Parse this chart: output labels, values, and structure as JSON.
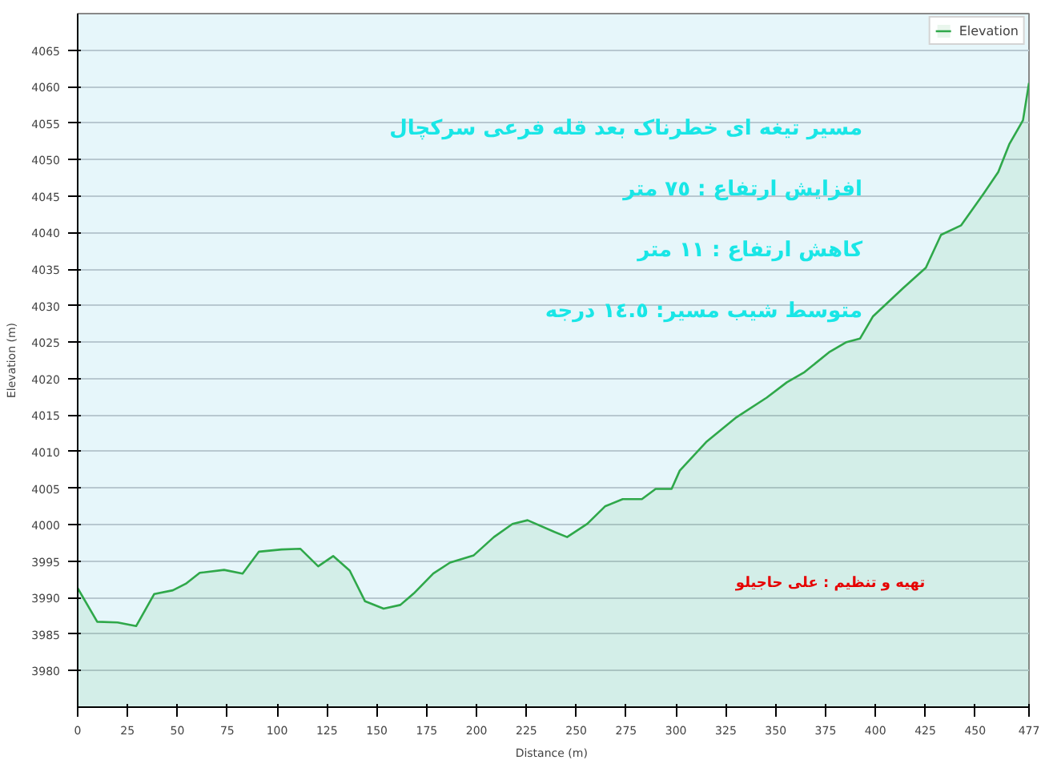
{
  "chart_data": {
    "type": "area",
    "xlabel": "Distance  (m)",
    "ylabel": "Elevation (m)",
    "x": [
      0,
      9.8,
      20,
      29.3,
      38.4,
      47.7,
      54.2,
      61.2,
      73.4,
      82.7,
      90.9,
      102.2,
      111.6,
      120.6,
      128.1,
      136.4,
      144.1,
      153.4,
      161.8,
      168.6,
      178.3,
      186.7,
      198.6,
      208.7,
      218,
      225.6,
      239.1,
      245.4,
      255.5,
      264.4,
      273.3,
      282.9,
      289.8,
      297.8,
      301.9,
      315.1,
      330.3,
      345.5,
      355.6,
      364.5,
      376.7,
      385.5,
      392.3,
      398.7,
      413.9,
      425.3,
      432.9,
      443,
      454.4,
      461.6,
      467.1,
      474,
      477
    ],
    "series": [
      {
        "name": "Elevation",
        "color": "#2fa84a",
        "values": [
          3991.3,
          3986.7,
          3986.6,
          3986.1,
          3990.5,
          3991,
          3991.9,
          3993.4,
          3993.8,
          3993.3,
          3996.3,
          3996.6,
          3996.7,
          3994.3,
          3995.7,
          3993.7,
          3989.5,
          3988.5,
          3989,
          3990.6,
          3993.3,
          3994.8,
          3995.8,
          3998.3,
          4000.1,
          4000.6,
          3999,
          3998.3,
          4000.1,
          4002.5,
          4003.5,
          4003.5,
          4004.9,
          4004.9,
          4007.4,
          4011.3,
          4014.7,
          4017.4,
          4019.5,
          4020.9,
          4023.6,
          4025,
          4025.5,
          4028.5,
          4032.4,
          4035.2,
          4039.7,
          4041,
          4045.4,
          4048.3,
          4052.1,
          4055.4,
          4060.5
        ]
      }
    ],
    "xlim": [
      0,
      477
    ],
    "xticks": [
      0,
      25,
      50,
      75,
      100,
      125,
      150,
      175,
      200,
      225,
      250,
      275,
      300,
      325,
      350,
      375,
      400,
      425,
      450,
      477
    ],
    "ylim": [
      3975,
      4070
    ],
    "yticks": [
      3980,
      3985,
      3990,
      3995,
      4000,
      4005,
      4010,
      4015,
      4020,
      4025,
      4030,
      4035,
      4040,
      4045,
      4050,
      4055,
      4060,
      4065
    ],
    "grid": "y",
    "legend": "top right",
    "annotations": [
      "مسیر تیغه ای خطرناک بعد قله فرعی سرکچال",
      "افزایش ارتفاع : ٧٥ متر",
      "کاهش ارتفاع : ١١ متر",
      "متوسط شیب مسیر: ١٤.٥ درجه",
      "تهیه و تنظیم : علی حاجیلو"
    ]
  }
}
